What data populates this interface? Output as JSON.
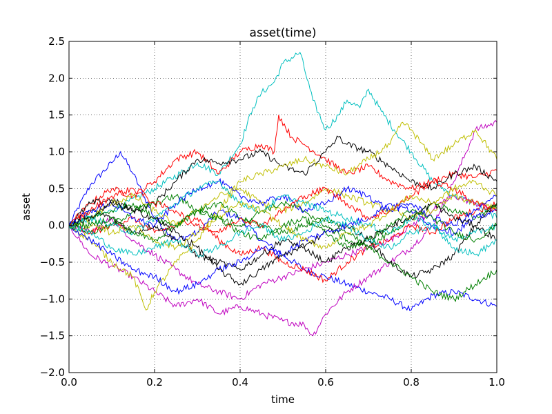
{
  "chart_data": {
    "type": "line",
    "title": "asset(time)",
    "xlabel": "time",
    "ylabel": "asset",
    "xlim": [
      0.0,
      1.0
    ],
    "ylim": [
      -2.0,
      2.5
    ],
    "xticks": [
      "0.0",
      "0.2",
      "0.4",
      "0.6",
      "0.8",
      "1.0"
    ],
    "yticks": [
      "−2.0",
      "−1.5",
      "−1.0",
      "−0.5",
      "0.0",
      "0.5",
      "1.0",
      "1.5",
      "2.0",
      "2.5"
    ],
    "grid": true,
    "series": [
      {
        "color": "#0000ff",
        "x": [
          0,
          0.05,
          0.1,
          0.12,
          0.15,
          0.2,
          0.25,
          0.3,
          0.35,
          0.4,
          0.45,
          0.5,
          0.55,
          0.6,
          0.65,
          0.7,
          0.75,
          0.8,
          0.85,
          0.9,
          0.95,
          1.0
        ],
        "y": [
          0,
          0.55,
          0.85,
          1.0,
          0.7,
          0.1,
          -0.2,
          -0.1,
          0.2,
          0.1,
          -0.2,
          -0.4,
          -0.6,
          -0.7,
          -0.8,
          -0.9,
          -1.0,
          -1.15,
          -0.95,
          -0.9,
          -1.0,
          -1.1
        ]
      },
      {
        "color": "#00bfbf",
        "x": [
          0,
          0.1,
          0.2,
          0.3,
          0.35,
          0.4,
          0.43,
          0.45,
          0.48,
          0.5,
          0.54,
          0.57,
          0.6,
          0.63,
          0.65,
          0.68,
          0.7,
          0.73,
          0.76,
          0.8,
          0.85,
          0.9,
          0.95,
          1.0
        ],
        "y": [
          0,
          0.2,
          0.5,
          0.85,
          0.7,
          1.1,
          1.6,
          1.8,
          1.95,
          2.2,
          2.35,
          1.7,
          1.3,
          1.5,
          1.7,
          1.6,
          1.85,
          1.55,
          1.3,
          1.0,
          0.6,
          0.4,
          0.3,
          0.1
        ]
      },
      {
        "color": "#bf00bf",
        "x": [
          0,
          0.05,
          0.1,
          0.15,
          0.2,
          0.25,
          0.3,
          0.35,
          0.4,
          0.45,
          0.5,
          0.55,
          0.57,
          0.6,
          0.65,
          0.7,
          0.75,
          0.8,
          0.85,
          0.9,
          0.95,
          1.0
        ],
        "y": [
          0,
          -0.4,
          -0.55,
          -0.7,
          -0.9,
          -1.1,
          -1.0,
          -1.2,
          -1.1,
          -1.2,
          -1.3,
          -1.35,
          -1.5,
          -1.2,
          -0.9,
          -0.7,
          -0.5,
          -0.3,
          0.0,
          0.6,
          1.3,
          1.4
        ]
      },
      {
        "color": "#bf00bf",
        "x": [
          0,
          0.05,
          0.1,
          0.15,
          0.2,
          0.25,
          0.3,
          0.35,
          0.4,
          0.45,
          0.5,
          0.55,
          0.6,
          0.65,
          0.7,
          0.75,
          0.8,
          0.85,
          0.9,
          0.95,
          1.0
        ],
        "y": [
          0,
          -0.1,
          0.1,
          -0.2,
          -0.4,
          -0.6,
          -0.8,
          -0.9,
          -1.0,
          -0.8,
          -0.7,
          -0.6,
          -0.5,
          -0.4,
          -0.3,
          -0.2,
          0.0,
          0.2,
          0.4,
          0.3,
          0.2
        ]
      },
      {
        "color": "#ff0000",
        "x": [
          0,
          0.05,
          0.1,
          0.15,
          0.2,
          0.25,
          0.3,
          0.35,
          0.4,
          0.45,
          0.48,
          0.49,
          0.52,
          0.55,
          0.6,
          0.65,
          0.7,
          0.75,
          0.8,
          0.85,
          0.9,
          0.95,
          1.0
        ],
        "y": [
          0,
          0.3,
          0.5,
          0.4,
          0.6,
          0.9,
          1.0,
          0.7,
          1.0,
          1.1,
          1.0,
          1.5,
          1.2,
          1.1,
          0.9,
          0.7,
          0.8,
          0.6,
          0.5,
          0.6,
          0.7,
          0.65,
          0.75
        ]
      },
      {
        "color": "#ff0000",
        "x": [
          0,
          0.05,
          0.1,
          0.15,
          0.2,
          0.25,
          0.3,
          0.35,
          0.4,
          0.45,
          0.5,
          0.55,
          0.6,
          0.65,
          0.7,
          0.75,
          0.8,
          0.85,
          0.9,
          0.95,
          1.0
        ],
        "y": [
          0,
          -0.1,
          0.0,
          0.1,
          -0.1,
          0.0,
          0.1,
          -0.2,
          -0.4,
          -0.3,
          -0.5,
          -0.6,
          -0.75,
          -0.5,
          -0.3,
          -0.2,
          0.0,
          -0.1,
          0.1,
          0.2,
          0.3
        ]
      },
      {
        "color": "#000000",
        "x": [
          0,
          0.05,
          0.1,
          0.15,
          0.2,
          0.25,
          0.3,
          0.35,
          0.4,
          0.45,
          0.5,
          0.55,
          0.6,
          0.63,
          0.65,
          0.7,
          0.75,
          0.8,
          0.85,
          0.9,
          0.95,
          1.0
        ],
        "y": [
          0,
          0.3,
          0.35,
          0.2,
          0.3,
          0.6,
          0.9,
          0.85,
          0.9,
          1.0,
          0.8,
          0.7,
          1.0,
          1.2,
          1.1,
          1.0,
          0.8,
          0.6,
          0.5,
          0.7,
          0.8,
          0.6
        ]
      },
      {
        "color": "#000000",
        "x": [
          0,
          0.05,
          0.1,
          0.15,
          0.2,
          0.25,
          0.3,
          0.35,
          0.4,
          0.45,
          0.5,
          0.55,
          0.6,
          0.65,
          0.7,
          0.75,
          0.8,
          0.85,
          0.9,
          0.95,
          1.0
        ],
        "y": [
          0,
          0.2,
          0.1,
          -0.1,
          0.0,
          -0.2,
          -0.4,
          -0.5,
          -0.6,
          -0.4,
          -0.2,
          -0.3,
          -0.1,
          0.0,
          -0.2,
          -0.5,
          -0.7,
          -0.6,
          -0.4,
          0.0,
          0.3
        ]
      },
      {
        "color": "#bfbf00",
        "x": [
          0,
          0.05,
          0.1,
          0.15,
          0.18,
          0.2,
          0.25,
          0.3,
          0.35,
          0.4,
          0.45,
          0.5,
          0.55,
          0.6,
          0.65,
          0.7,
          0.75,
          0.78,
          0.8,
          0.85,
          0.9,
          0.95,
          1.0
        ],
        "y": [
          0,
          -0.2,
          -0.5,
          -0.7,
          -1.15,
          -0.9,
          -0.5,
          -0.2,
          0.2,
          0.6,
          0.7,
          0.8,
          0.9,
          0.8,
          0.7,
          0.9,
          1.1,
          1.4,
          1.3,
          0.9,
          1.1,
          1.3,
          0.9
        ]
      },
      {
        "color": "#bfbf00",
        "x": [
          0,
          0.05,
          0.1,
          0.15,
          0.2,
          0.25,
          0.3,
          0.35,
          0.4,
          0.45,
          0.5,
          0.55,
          0.6,
          0.65,
          0.7,
          0.75,
          0.8,
          0.85,
          0.9,
          0.95,
          1.0
        ],
        "y": [
          0,
          0.1,
          0.3,
          0.4,
          0.2,
          0.0,
          0.2,
          0.4,
          0.5,
          0.3,
          0.2,
          0.3,
          0.5,
          0.4,
          0.3,
          0.2,
          0.1,
          0.2,
          0.4,
          0.3,
          0.25
        ]
      },
      {
        "color": "#008000",
        "x": [
          0,
          0.05,
          0.1,
          0.15,
          0.2,
          0.25,
          0.3,
          0.35,
          0.4,
          0.45,
          0.5,
          0.55,
          0.6,
          0.65,
          0.7,
          0.75,
          0.8,
          0.85,
          0.9,
          0.95,
          1.0
        ],
        "y": [
          0,
          0.1,
          0.2,
          0.3,
          0.1,
          0.0,
          0.2,
          0.3,
          0.1,
          0.0,
          -0.1,
          0.0,
          0.1,
          -0.1,
          -0.3,
          -0.5,
          -0.7,
          -0.9,
          -1.0,
          -0.8,
          -0.6
        ]
      },
      {
        "color": "#008000",
        "x": [
          0,
          0.05,
          0.1,
          0.15,
          0.2,
          0.25,
          0.3,
          0.35,
          0.4,
          0.45,
          0.5,
          0.55,
          0.6,
          0.65,
          0.7,
          0.75,
          0.8,
          0.85,
          0.9,
          0.95,
          1.0
        ],
        "y": [
          0,
          -0.1,
          0.0,
          0.2,
          0.3,
          0.4,
          0.2,
          0.1,
          0.0,
          0.2,
          0.3,
          0.2,
          0.0,
          -0.2,
          -0.3,
          -0.1,
          0.1,
          0.3,
          0.2,
          0.1,
          0.3
        ]
      },
      {
        "color": "#0000ff",
        "x": [
          0,
          0.05,
          0.1,
          0.15,
          0.2,
          0.25,
          0.3,
          0.35,
          0.4,
          0.45,
          0.5,
          0.55,
          0.6,
          0.65,
          0.7,
          0.75,
          0.8,
          0.85,
          0.9,
          0.95,
          1.0
        ],
        "y": [
          0,
          0.2,
          0.3,
          0.1,
          0.0,
          0.3,
          0.5,
          0.6,
          0.4,
          0.3,
          0.4,
          0.2,
          0.3,
          0.5,
          0.4,
          0.2,
          0.3,
          0.1,
          0.0,
          0.2,
          0.4
        ]
      },
      {
        "color": "#0000ff",
        "x": [
          0,
          0.05,
          0.1,
          0.15,
          0.2,
          0.25,
          0.3,
          0.35,
          0.4,
          0.45,
          0.5,
          0.55,
          0.6,
          0.65,
          0.7,
          0.75,
          0.8,
          0.85,
          0.9,
          0.95,
          1.0
        ],
        "y": [
          0,
          -0.2,
          -0.4,
          -0.6,
          -0.7,
          -0.9,
          -0.8,
          -0.6,
          -0.5,
          -0.3,
          -0.4,
          -0.2,
          -0.1,
          0.0,
          0.1,
          0.3,
          0.2,
          0.0,
          -0.1,
          0.1,
          0.2
        ]
      },
      {
        "color": "#00bfbf",
        "x": [
          0,
          0.05,
          0.1,
          0.15,
          0.2,
          0.25,
          0.3,
          0.35,
          0.4,
          0.45,
          0.5,
          0.55,
          0.6,
          0.65,
          0.7,
          0.75,
          0.8,
          0.85,
          0.9,
          0.95,
          1.0
        ],
        "y": [
          0,
          0.1,
          0.0,
          -0.1,
          0.1,
          0.3,
          0.5,
          0.6,
          0.3,
          0.2,
          0.4,
          0.3,
          0.2,
          0.1,
          0.0,
          -0.1,
          0.1,
          0.0,
          -0.2,
          -0.1,
          0.0
        ]
      },
      {
        "color": "#ff0000",
        "x": [
          0,
          0.05,
          0.1,
          0.15,
          0.2,
          0.25,
          0.3,
          0.35,
          0.4,
          0.45,
          0.5,
          0.55,
          0.6,
          0.65,
          0.7,
          0.75,
          0.8,
          0.85,
          0.9,
          0.95,
          1.0
        ],
        "y": [
          0,
          0.2,
          0.4,
          0.5,
          0.3,
          0.2,
          0.0,
          -0.1,
          0.1,
          0.0,
          0.2,
          0.4,
          0.5,
          0.3,
          0.1,
          0.2,
          0.4,
          0.6,
          0.5,
          0.3,
          0.2
        ]
      },
      {
        "color": "#000000",
        "x": [
          0,
          0.05,
          0.1,
          0.15,
          0.2,
          0.25,
          0.3,
          0.35,
          0.4,
          0.45,
          0.5,
          0.55,
          0.6,
          0.65,
          0.7,
          0.75,
          0.8,
          0.85,
          0.9,
          0.95,
          1.0
        ],
        "y": [
          0,
          0.1,
          0.3,
          0.2,
          0.1,
          -0.1,
          -0.3,
          -0.6,
          -0.8,
          -0.6,
          -0.4,
          -0.3,
          -0.5,
          -0.3,
          -0.2,
          0.0,
          0.1,
          0.3,
          0.1,
          0.0,
          -0.2
        ]
      },
      {
        "color": "#bfbf00",
        "x": [
          0,
          0.05,
          0.1,
          0.15,
          0.2,
          0.25,
          0.3,
          0.35,
          0.4,
          0.45,
          0.5,
          0.55,
          0.6,
          0.65,
          0.7,
          0.75,
          0.8,
          0.85,
          0.9,
          0.95,
          1.0
        ],
        "y": [
          0,
          0.0,
          -0.1,
          0.0,
          -0.2,
          -0.3,
          -0.1,
          0.1,
          0.3,
          0.2,
          0.0,
          -0.2,
          -0.3,
          -0.1,
          0.0,
          0.2,
          0.4,
          0.3,
          0.5,
          0.6,
          0.4
        ]
      },
      {
        "color": "#008000",
        "x": [
          0,
          0.05,
          0.1,
          0.15,
          0.2,
          0.25,
          0.3,
          0.35,
          0.4,
          0.45,
          0.5,
          0.55,
          0.6,
          0.65,
          0.7,
          0.75,
          0.8,
          0.85,
          0.9,
          0.95,
          1.0
        ],
        "y": [
          0,
          0.0,
          0.1,
          -0.1,
          -0.2,
          0.0,
          0.2,
          0.1,
          -0.1,
          -0.2,
          0.0,
          0.1,
          -0.1,
          -0.3,
          -0.2,
          0.0,
          0.2,
          0.1,
          -0.1,
          -0.2,
          0.0
        ]
      },
      {
        "color": "#00bfbf",
        "x": [
          0,
          0.05,
          0.1,
          0.15,
          0.2,
          0.25,
          0.3,
          0.35,
          0.4,
          0.45,
          0.5,
          0.55,
          0.6,
          0.65,
          0.7,
          0.75,
          0.8,
          0.85,
          0.9,
          0.95,
          1.0
        ],
        "y": [
          0,
          -0.1,
          -0.3,
          -0.4,
          -0.3,
          -0.2,
          -0.4,
          -0.3,
          -0.1,
          0.0,
          -0.2,
          -0.1,
          0.1,
          0.0,
          -0.2,
          -0.3,
          -0.1,
          0.0,
          -0.3,
          -0.4,
          -0.2
        ]
      }
    ]
  }
}
